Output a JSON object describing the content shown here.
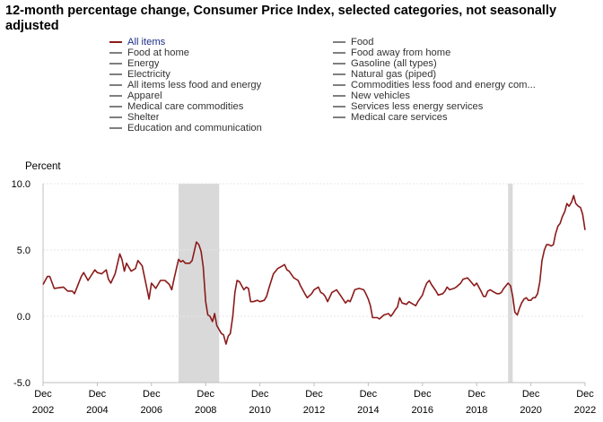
{
  "chart_data": {
    "type": "line",
    "title": "12-month percentage change, Consumer Price Index, selected categories, not seasonally adjusted",
    "ylabel": "Percent",
    "ylim": [
      -5.0,
      10.0
    ],
    "yticks": [
      "10.0",
      "5.0",
      "0.0",
      "-5.0"
    ],
    "ytick_values": [
      10,
      5,
      0,
      -5
    ],
    "xticks": [
      {
        "month": "Dec",
        "year": "2002",
        "t": 2002.92
      },
      {
        "month": "Dec",
        "year": "2004",
        "t": 2004.92
      },
      {
        "month": "Dec",
        "year": "2006",
        "t": 2006.92
      },
      {
        "month": "Dec",
        "year": "2008",
        "t": 2008.92
      },
      {
        "month": "Dec",
        "year": "2010",
        "t": 2010.92
      },
      {
        "month": "Dec",
        "year": "2012",
        "t": 2012.92
      },
      {
        "month": "Dec",
        "year": "2014",
        "t": 2014.92
      },
      {
        "month": "Dec",
        "year": "2016",
        "t": 2016.92
      },
      {
        "month": "Dec",
        "year": "2018",
        "t": 2018.92
      },
      {
        "month": "Dec",
        "year": "2020",
        "t": 2020.92
      },
      {
        "month": "Dec",
        "year": "2022",
        "t": 2022.92
      }
    ],
    "xlim": [
      2002.92,
      2022.92
    ],
    "grid": true,
    "legend_position": "top",
    "recessions": [
      [
        2007.92,
        2009.42
      ],
      [
        2020.08,
        2020.25
      ]
    ],
    "series": [
      {
        "name": "All items",
        "color": "#8b1a1a",
        "points": [
          [
            2002.92,
            2.4
          ],
          [
            2003.08,
            3.0
          ],
          [
            2003.17,
            3.0
          ],
          [
            2003.33,
            2.1
          ],
          [
            2003.67,
            2.2
          ],
          [
            2003.83,
            1.9
          ],
          [
            2004.0,
            1.9
          ],
          [
            2004.08,
            1.7
          ],
          [
            2004.33,
            3.0
          ],
          [
            2004.42,
            3.3
          ],
          [
            2004.58,
            2.7
          ],
          [
            2004.83,
            3.5
          ],
          [
            2004.92,
            3.3
          ],
          [
            2005.08,
            3.2
          ],
          [
            2005.25,
            3.5
          ],
          [
            2005.33,
            2.8
          ],
          [
            2005.42,
            2.5
          ],
          [
            2005.58,
            3.2
          ],
          [
            2005.75,
            4.7
          ],
          [
            2005.83,
            4.3
          ],
          [
            2005.92,
            3.4
          ],
          [
            2006.0,
            4.0
          ],
          [
            2006.17,
            3.4
          ],
          [
            2006.33,
            3.6
          ],
          [
            2006.42,
            4.2
          ],
          [
            2006.58,
            3.8
          ],
          [
            2006.75,
            2.1
          ],
          [
            2006.83,
            1.3
          ],
          [
            2006.92,
            2.5
          ],
          [
            2007.08,
            2.1
          ],
          [
            2007.25,
            2.7
          ],
          [
            2007.42,
            2.7
          ],
          [
            2007.58,
            2.4
          ],
          [
            2007.67,
            2.0
          ],
          [
            2007.75,
            2.8
          ],
          [
            2007.92,
            4.3
          ],
          [
            2008.0,
            4.1
          ],
          [
            2008.08,
            4.2
          ],
          [
            2008.17,
            4.0
          ],
          [
            2008.33,
            4.0
          ],
          [
            2008.42,
            4.2
          ],
          [
            2008.58,
            5.6
          ],
          [
            2008.67,
            5.4
          ],
          [
            2008.75,
            4.9
          ],
          [
            2008.83,
            3.7
          ],
          [
            2008.92,
            1.1
          ],
          [
            2009.0,
            0.1
          ],
          [
            2009.08,
            0.0
          ],
          [
            2009.17,
            -0.4
          ],
          [
            2009.25,
            0.2
          ],
          [
            2009.33,
            -0.7
          ],
          [
            2009.5,
            -1.3
          ],
          [
            2009.58,
            -1.4
          ],
          [
            2009.67,
            -2.1
          ],
          [
            2009.75,
            -1.5
          ],
          [
            2009.83,
            -1.3
          ],
          [
            2009.92,
            0.0
          ],
          [
            2010.0,
            1.8
          ],
          [
            2010.08,
            2.7
          ],
          [
            2010.17,
            2.6
          ],
          [
            2010.33,
            2.0
          ],
          [
            2010.42,
            2.2
          ],
          [
            2010.5,
            2.1
          ],
          [
            2010.58,
            1.1
          ],
          [
            2010.67,
            1.1
          ],
          [
            2010.83,
            1.2
          ],
          [
            2010.92,
            1.1
          ],
          [
            2011.08,
            1.2
          ],
          [
            2011.17,
            1.5
          ],
          [
            2011.25,
            2.1
          ],
          [
            2011.42,
            3.2
          ],
          [
            2011.58,
            3.6
          ],
          [
            2011.75,
            3.8
          ],
          [
            2011.83,
            3.9
          ],
          [
            2011.92,
            3.5
          ],
          [
            2012.0,
            3.4
          ],
          [
            2012.17,
            2.9
          ],
          [
            2012.33,
            2.7
          ],
          [
            2012.42,
            2.3
          ],
          [
            2012.58,
            1.7
          ],
          [
            2012.67,
            1.4
          ],
          [
            2012.83,
            1.7
          ],
          [
            2012.92,
            2.0
          ],
          [
            2013.08,
            2.2
          ],
          [
            2013.17,
            1.8
          ],
          [
            2013.25,
            1.7
          ],
          [
            2013.33,
            1.5
          ],
          [
            2013.42,
            1.1
          ],
          [
            2013.58,
            1.8
          ],
          [
            2013.75,
            2.0
          ],
          [
            2013.92,
            1.5
          ],
          [
            2014.08,
            1.0
          ],
          [
            2014.17,
            1.2
          ],
          [
            2014.25,
            1.1
          ],
          [
            2014.33,
            1.5
          ],
          [
            2014.42,
            2.0
          ],
          [
            2014.58,
            2.1
          ],
          [
            2014.75,
            2.0
          ],
          [
            2014.83,
            1.7
          ],
          [
            2014.92,
            1.3
          ],
          [
            2015.0,
            0.8
          ],
          [
            2015.08,
            -0.1
          ],
          [
            2015.25,
            -0.1
          ],
          [
            2015.33,
            -0.2
          ],
          [
            2015.5,
            0.1
          ],
          [
            2015.67,
            0.2
          ],
          [
            2015.75,
            0.0
          ],
          [
            2015.83,
            0.2
          ],
          [
            2015.92,
            0.5
          ],
          [
            2016.0,
            0.7
          ],
          [
            2016.08,
            1.4
          ],
          [
            2016.17,
            1.0
          ],
          [
            2016.33,
            0.9
          ],
          [
            2016.42,
            1.1
          ],
          [
            2016.5,
            1.0
          ],
          [
            2016.67,
            0.8
          ],
          [
            2016.75,
            1.1
          ],
          [
            2016.92,
            1.6
          ],
          [
            2017.0,
            2.1
          ],
          [
            2017.08,
            2.5
          ],
          [
            2017.17,
            2.7
          ],
          [
            2017.25,
            2.4
          ],
          [
            2017.42,
            1.9
          ],
          [
            2017.5,
            1.6
          ],
          [
            2017.67,
            1.7
          ],
          [
            2017.75,
            1.9
          ],
          [
            2017.83,
            2.2
          ],
          [
            2017.92,
            2.0
          ],
          [
            2018.08,
            2.1
          ],
          [
            2018.17,
            2.2
          ],
          [
            2018.33,
            2.5
          ],
          [
            2018.42,
            2.8
          ],
          [
            2018.58,
            2.9
          ],
          [
            2018.67,
            2.7
          ],
          [
            2018.83,
            2.3
          ],
          [
            2018.92,
            2.5
          ],
          [
            2019.0,
            2.2
          ],
          [
            2019.08,
            1.9
          ],
          [
            2019.17,
            1.5
          ],
          [
            2019.25,
            1.5
          ],
          [
            2019.33,
            1.9
          ],
          [
            2019.42,
            2.0
          ],
          [
            2019.58,
            1.8
          ],
          [
            2019.67,
            1.7
          ],
          [
            2019.75,
            1.7
          ],
          [
            2019.83,
            1.8
          ],
          [
            2019.92,
            2.1
          ],
          [
            2020.0,
            2.3
          ],
          [
            2020.08,
            2.5
          ],
          [
            2020.17,
            2.3
          ],
          [
            2020.25,
            1.5
          ],
          [
            2020.33,
            0.3
          ],
          [
            2020.42,
            0.1
          ],
          [
            2020.5,
            0.6
          ],
          [
            2020.58,
            1.0
          ],
          [
            2020.67,
            1.3
          ],
          [
            2020.75,
            1.4
          ],
          [
            2020.83,
            1.2
          ],
          [
            2020.92,
            1.2
          ],
          [
            2021.0,
            1.4
          ],
          [
            2021.08,
            1.4
          ],
          [
            2021.17,
            1.7
          ],
          [
            2021.25,
            2.6
          ],
          [
            2021.33,
            4.2
          ],
          [
            2021.42,
            5.0
          ],
          [
            2021.5,
            5.4
          ],
          [
            2021.58,
            5.4
          ],
          [
            2021.67,
            5.3
          ],
          [
            2021.75,
            5.4
          ],
          [
            2021.83,
            6.2
          ],
          [
            2021.92,
            6.8
          ],
          [
            2022.0,
            7.0
          ],
          [
            2022.08,
            7.5
          ],
          [
            2022.17,
            7.9
          ],
          [
            2022.25,
            8.5
          ],
          [
            2022.33,
            8.3
          ],
          [
            2022.42,
            8.6
          ],
          [
            2022.5,
            9.1
          ],
          [
            2022.58,
            8.5
          ],
          [
            2022.67,
            8.3
          ],
          [
            2022.75,
            8.2
          ],
          [
            2022.83,
            7.7
          ],
          [
            2022.92,
            6.5
          ]
        ]
      }
    ]
  },
  "legend": {
    "left": [
      {
        "label": "All items",
        "active": true
      },
      {
        "label": "Food at home",
        "active": false
      },
      {
        "label": "Energy",
        "active": false
      },
      {
        "label": "Electricity",
        "active": false
      },
      {
        "label": "All items less food and energy",
        "active": false
      },
      {
        "label": "Apparel",
        "active": false
      },
      {
        "label": "Medical care commodities",
        "active": false
      },
      {
        "label": "Shelter",
        "active": false
      },
      {
        "label": "Education and communication",
        "active": false
      }
    ],
    "right": [
      {
        "label": "Food",
        "active": false
      },
      {
        "label": "Food away from home",
        "active": false
      },
      {
        "label": "Gasoline (all types)",
        "active": false
      },
      {
        "label": "Natural gas (piped)",
        "active": false
      },
      {
        "label": "Commodities less food and energy com...",
        "active": false
      },
      {
        "label": "New vehicles",
        "active": false
      },
      {
        "label": "Services less energy services",
        "active": false
      },
      {
        "label": "Medical care services",
        "active": false
      }
    ],
    "active_color": "#8b1a1a",
    "inactive_color": "#7f7f7f"
  },
  "colors": {
    "recession": "#d9d9d9",
    "grid": "#e6e6e6",
    "axis": "#bfbfbf"
  }
}
